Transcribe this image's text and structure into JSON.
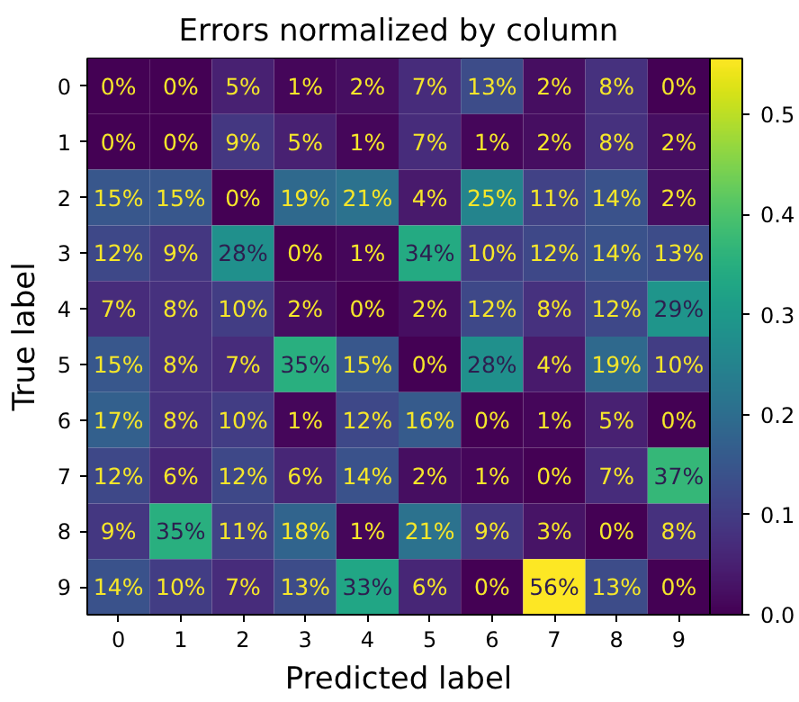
{
  "chart_data": {
    "type": "heatmap",
    "title": "Errors normalized by column",
    "xlabel": "Predicted label",
    "ylabel": "True label",
    "categories": [
      "0",
      "1",
      "2",
      "3",
      "4",
      "5",
      "6",
      "7",
      "8",
      "9"
    ],
    "y_categories": [
      "0",
      "1",
      "2",
      "3",
      "4",
      "5",
      "6",
      "7",
      "8",
      "9"
    ],
    "cells": [
      [
        0.0,
        0.0,
        0.05,
        0.01,
        0.02,
        0.07,
        0.13,
        0.02,
        0.08,
        0.0
      ],
      [
        0.0,
        0.0,
        0.09,
        0.05,
        0.01,
        0.07,
        0.01,
        0.02,
        0.08,
        0.02
      ],
      [
        0.15,
        0.15,
        0.0,
        0.19,
        0.21,
        0.04,
        0.25,
        0.11,
        0.14,
        0.02
      ],
      [
        0.12,
        0.09,
        0.28,
        0.0,
        0.01,
        0.34,
        0.1,
        0.12,
        0.14,
        0.13
      ],
      [
        0.07,
        0.08,
        0.1,
        0.02,
        0.0,
        0.02,
        0.12,
        0.08,
        0.12,
        0.29
      ],
      [
        0.15,
        0.08,
        0.07,
        0.35,
        0.15,
        0.0,
        0.28,
        0.04,
        0.19,
        0.1
      ],
      [
        0.17,
        0.08,
        0.1,
        0.01,
        0.12,
        0.16,
        0.0,
        0.01,
        0.05,
        0.0
      ],
      [
        0.12,
        0.06,
        0.12,
        0.06,
        0.14,
        0.02,
        0.01,
        0.0,
        0.07,
        0.37
      ],
      [
        0.09,
        0.35,
        0.11,
        0.18,
        0.01,
        0.21,
        0.09,
        0.03,
        0.0,
        0.08
      ],
      [
        0.14,
        0.1,
        0.07,
        0.13,
        0.33,
        0.06,
        0.0,
        0.56,
        0.13,
        0.0
      ]
    ],
    "cell_labels": [
      [
        "0%",
        "0%",
        "5%",
        "1%",
        "2%",
        "7%",
        "13%",
        "2%",
        "8%",
        "0%"
      ],
      [
        "0%",
        "0%",
        "9%",
        "5%",
        "1%",
        "7%",
        "1%",
        "2%",
        "8%",
        "2%"
      ],
      [
        "15%",
        "15%",
        "0%",
        "19%",
        "21%",
        "4%",
        "25%",
        "11%",
        "14%",
        "2%"
      ],
      [
        "12%",
        "9%",
        "28%",
        "0%",
        "1%",
        "34%",
        "10%",
        "12%",
        "14%",
        "13%"
      ],
      [
        "7%",
        "8%",
        "10%",
        "2%",
        "0%",
        "2%",
        "12%",
        "8%",
        "12%",
        "29%"
      ],
      [
        "15%",
        "8%",
        "7%",
        "35%",
        "15%",
        "0%",
        "28%",
        "4%",
        "19%",
        "10%"
      ],
      [
        "17%",
        "8%",
        "10%",
        "1%",
        "12%",
        "16%",
        "0%",
        "1%",
        "5%",
        "0%"
      ],
      [
        "12%",
        "6%",
        "12%",
        "6%",
        "14%",
        "2%",
        "1%",
        "0%",
        "7%",
        "37%"
      ],
      [
        "9%",
        "35%",
        "11%",
        "18%",
        "1%",
        "21%",
        "9%",
        "3%",
        "0%",
        "8%"
      ],
      [
        "14%",
        "10%",
        "7%",
        "13%",
        "33%",
        "6%",
        "0%",
        "56%",
        "13%",
        "0%"
      ]
    ],
    "clim": [
      0.0,
      0.556
    ],
    "cticks": [
      {
        "value": 0,
        "label": "0.0"
      },
      0.1,
      0.2,
      0.3,
      0.4,
      0.5
    ]
  }
}
